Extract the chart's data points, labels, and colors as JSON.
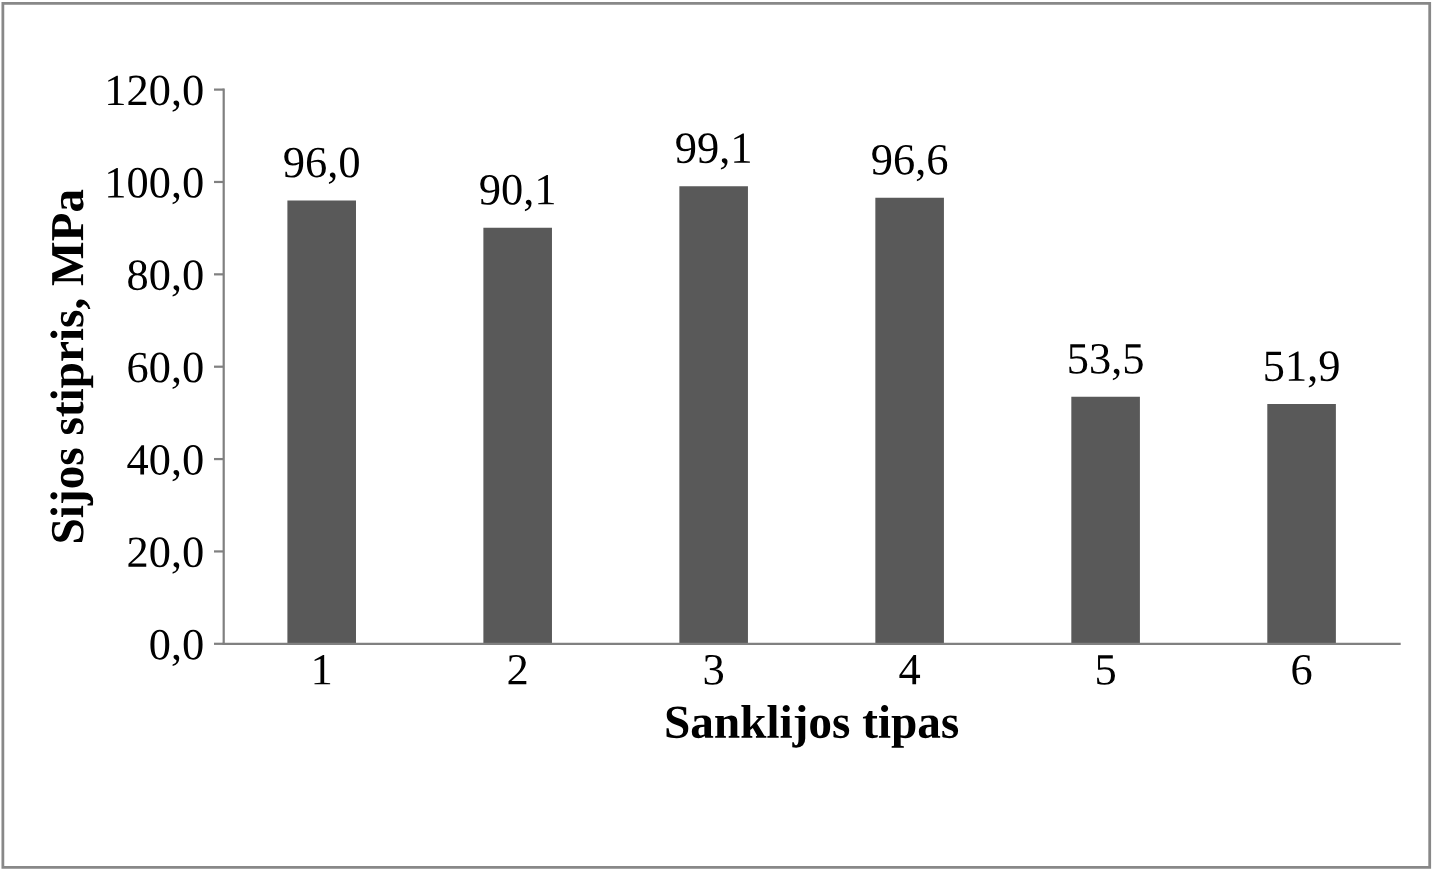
{
  "chart_data": {
    "type": "bar",
    "xlabel": "Sanklijos tipas",
    "ylabel": "Sijos stipris, MPa",
    "categories": [
      "1",
      "2",
      "3",
      "4",
      "5",
      "6"
    ],
    "values": [
      96.0,
      90.1,
      99.1,
      96.6,
      53.5,
      51.9
    ],
    "value_labels": [
      "96,0",
      "90,1",
      "99,1",
      "96,6",
      "53,5",
      "51,9"
    ],
    "color": "#595959",
    "ylim": [
      0,
      120
    ],
    "yticks": [
      {
        "value": 0,
        "label": "0,0"
      },
      {
        "value": 20,
        "label": "20,0"
      },
      {
        "value": 40,
        "label": "40,0"
      },
      {
        "value": 60,
        "label": "60,0"
      },
      {
        "value": 80,
        "label": "80,0"
      },
      {
        "value": 100,
        "label": "100,0"
      },
      {
        "value": 120,
        "label": "120,0"
      }
    ],
    "grid": false,
    "legend": false
  }
}
